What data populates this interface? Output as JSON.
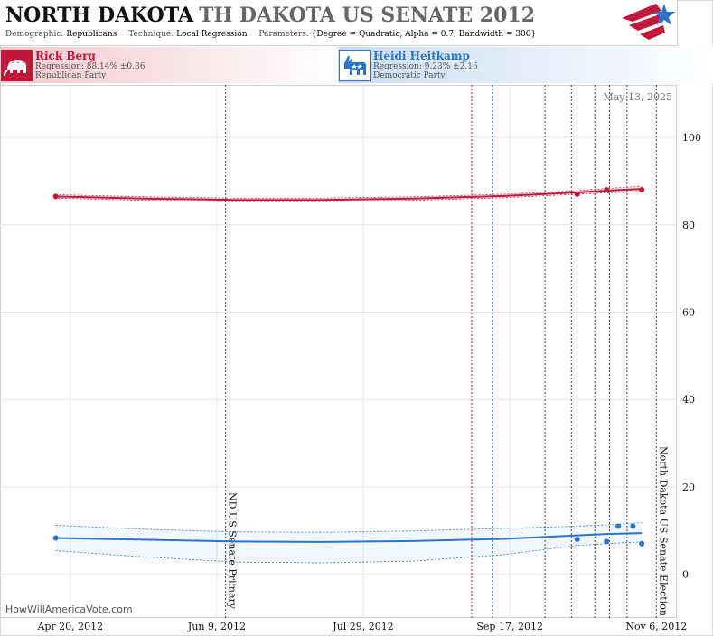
{
  "header": {
    "state": "NORTH DAKOTA",
    "race": "TH DAKOTA US SENATE 2012",
    "demographic_label": "Demographic:",
    "demographic": "Republicans",
    "technique_label": "Technique:",
    "technique": "Local Regression",
    "parameters_label": "Parameters:",
    "parameters": "{Degree = Quadratic, Alpha = 0.7, Bandwidth = 300}"
  },
  "candidates": [
    {
      "name": "Rick Berg",
      "regression": "Regression: 88.14% ±0.36",
      "party": "Republican Party",
      "color": "#c0173a",
      "icon": "elephant-icon"
    },
    {
      "name": "Heidi Heitkamp",
      "regression": "Regression: 9.23% ±2.16",
      "party": "Democratic Party",
      "color": "#2a74c9",
      "icon": "donkey-icon"
    }
  ],
  "watermark": "HowWillAmericaVote.com",
  "date_stamp": "May 13, 2025",
  "chart_data": {
    "type": "line",
    "x_range": [
      "2012-03-27",
      "2012-11-13"
    ],
    "ylim": [
      -10,
      112
    ],
    "y_ticks": [
      0,
      20,
      40,
      60,
      80,
      100
    ],
    "x_ticks": [
      {
        "date": "2012-04-20",
        "label": "Apr 20, 2012"
      },
      {
        "date": "2012-06-09",
        "label": "Jun 9, 2012"
      },
      {
        "date": "2012-07-29",
        "label": "Jul 29, 2012"
      },
      {
        "date": "2012-09-17",
        "label": "Sep 17, 2012"
      },
      {
        "date": "2012-11-06",
        "label": "Nov 6, 2012"
      }
    ],
    "events": [
      {
        "date": "2012-06-12",
        "label": "ND US Senate Primary"
      },
      {
        "date": "2012-11-06",
        "label": "North Dakota US Senate Election"
      }
    ],
    "poll_lines": [
      {
        "date": "2012-09-04",
        "color": "#c0173a"
      },
      {
        "date": "2012-09-11",
        "color": "#2a74c9"
      },
      {
        "date": "2012-09-29",
        "color": "#444444"
      },
      {
        "date": "2012-10-08",
        "color": "#444444"
      },
      {
        "date": "2012-10-16",
        "color": "#444444"
      },
      {
        "date": "2012-10-21",
        "color": "#444444"
      },
      {
        "date": "2012-10-27",
        "color": "#444444"
      }
    ],
    "series": [
      {
        "name": "Rick Berg",
        "color": "#c0173a",
        "points": [
          {
            "x": "2012-04-15",
            "y": 86.5
          },
          {
            "x": "2012-10-10",
            "y": 87.0
          },
          {
            "x": "2012-10-20",
            "y": 88.0
          },
          {
            "x": "2012-11-01",
            "y": 88.0
          }
        ],
        "trend": [
          {
            "x": "2012-04-15",
            "y": 86.5
          },
          {
            "x": "2012-05-15",
            "y": 86.0
          },
          {
            "x": "2012-06-15",
            "y": 85.7
          },
          {
            "x": "2012-07-15",
            "y": 85.7
          },
          {
            "x": "2012-08-15",
            "y": 86.0
          },
          {
            "x": "2012-09-15",
            "y": 86.6
          },
          {
            "x": "2012-10-10",
            "y": 87.4
          },
          {
            "x": "2012-10-20",
            "y": 87.8
          },
          {
            "x": "2012-11-01",
            "y": 88.2
          }
        ],
        "band_upper": [
          86.9,
          86.4,
          86.1,
          86.1,
          86.4,
          87.0,
          87.8,
          88.3,
          88.8
        ],
        "band_lower": [
          86.1,
          85.6,
          85.3,
          85.3,
          85.6,
          86.2,
          87.0,
          87.3,
          87.6
        ]
      },
      {
        "name": "Heidi Heitkamp",
        "color": "#2a74c9",
        "points": [
          {
            "x": "2012-04-15",
            "y": 8.3
          },
          {
            "x": "2012-10-10",
            "y": 8.0
          },
          {
            "x": "2012-10-20",
            "y": 7.5
          },
          {
            "x": "2012-10-24",
            "y": 11.0
          },
          {
            "x": "2012-10-29",
            "y": 11.0
          },
          {
            "x": "2012-11-01",
            "y": 7.0
          }
        ],
        "trend": [
          {
            "x": "2012-04-15",
            "y": 8.3
          },
          {
            "x": "2012-05-15",
            "y": 7.9
          },
          {
            "x": "2012-06-15",
            "y": 7.5
          },
          {
            "x": "2012-07-15",
            "y": 7.4
          },
          {
            "x": "2012-08-15",
            "y": 7.6
          },
          {
            "x": "2012-09-15",
            "y": 8.1
          },
          {
            "x": "2012-10-10",
            "y": 8.9
          },
          {
            "x": "2012-10-20",
            "y": 9.2
          },
          {
            "x": "2012-11-01",
            "y": 9.4
          }
        ],
        "band_upper": [
          11.2,
          10.3,
          9.7,
          9.6,
          9.9,
          10.5,
          11.0,
          11.3,
          11.8
        ],
        "band_lower": [
          5.4,
          4.0,
          2.8,
          2.6,
          3.0,
          4.5,
          6.6,
          7.0,
          7.4
        ]
      }
    ]
  }
}
